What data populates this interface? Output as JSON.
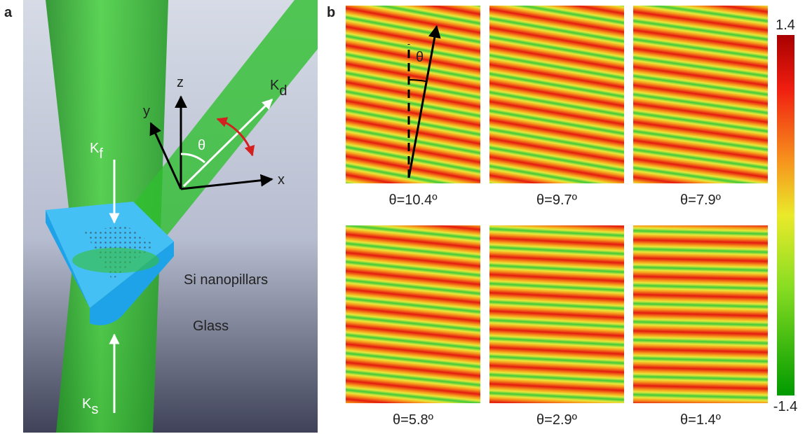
{
  "panel_a": {
    "label": "a",
    "axes": {
      "x": "x",
      "y": "y",
      "z": "z"
    },
    "angle": "θ",
    "beams": [
      {
        "symbol": "K",
        "subscript": "d"
      },
      {
        "symbol": "K",
        "subscript": "f"
      },
      {
        "symbol": "K",
        "subscript": "s"
      }
    ],
    "materials": [
      "Si nanopillars",
      "Glass"
    ]
  },
  "panel_b": {
    "label": "b",
    "map_angle": "θ",
    "maps": [
      {
        "theta": 10.4,
        "label": "θ=10.4º"
      },
      {
        "theta": 9.7,
        "label": "θ=9.7º"
      },
      {
        "theta": 7.9,
        "label": "θ=7.9º"
      },
      {
        "theta": 5.8,
        "label": "θ=5.8º"
      },
      {
        "theta": 2.9,
        "label": "θ=2.9º"
      },
      {
        "theta": 1.4,
        "label": "θ=1.4º"
      }
    ],
    "colorbar": {
      "ticks": [
        1.4,
        -1.4
      ]
    }
  }
}
